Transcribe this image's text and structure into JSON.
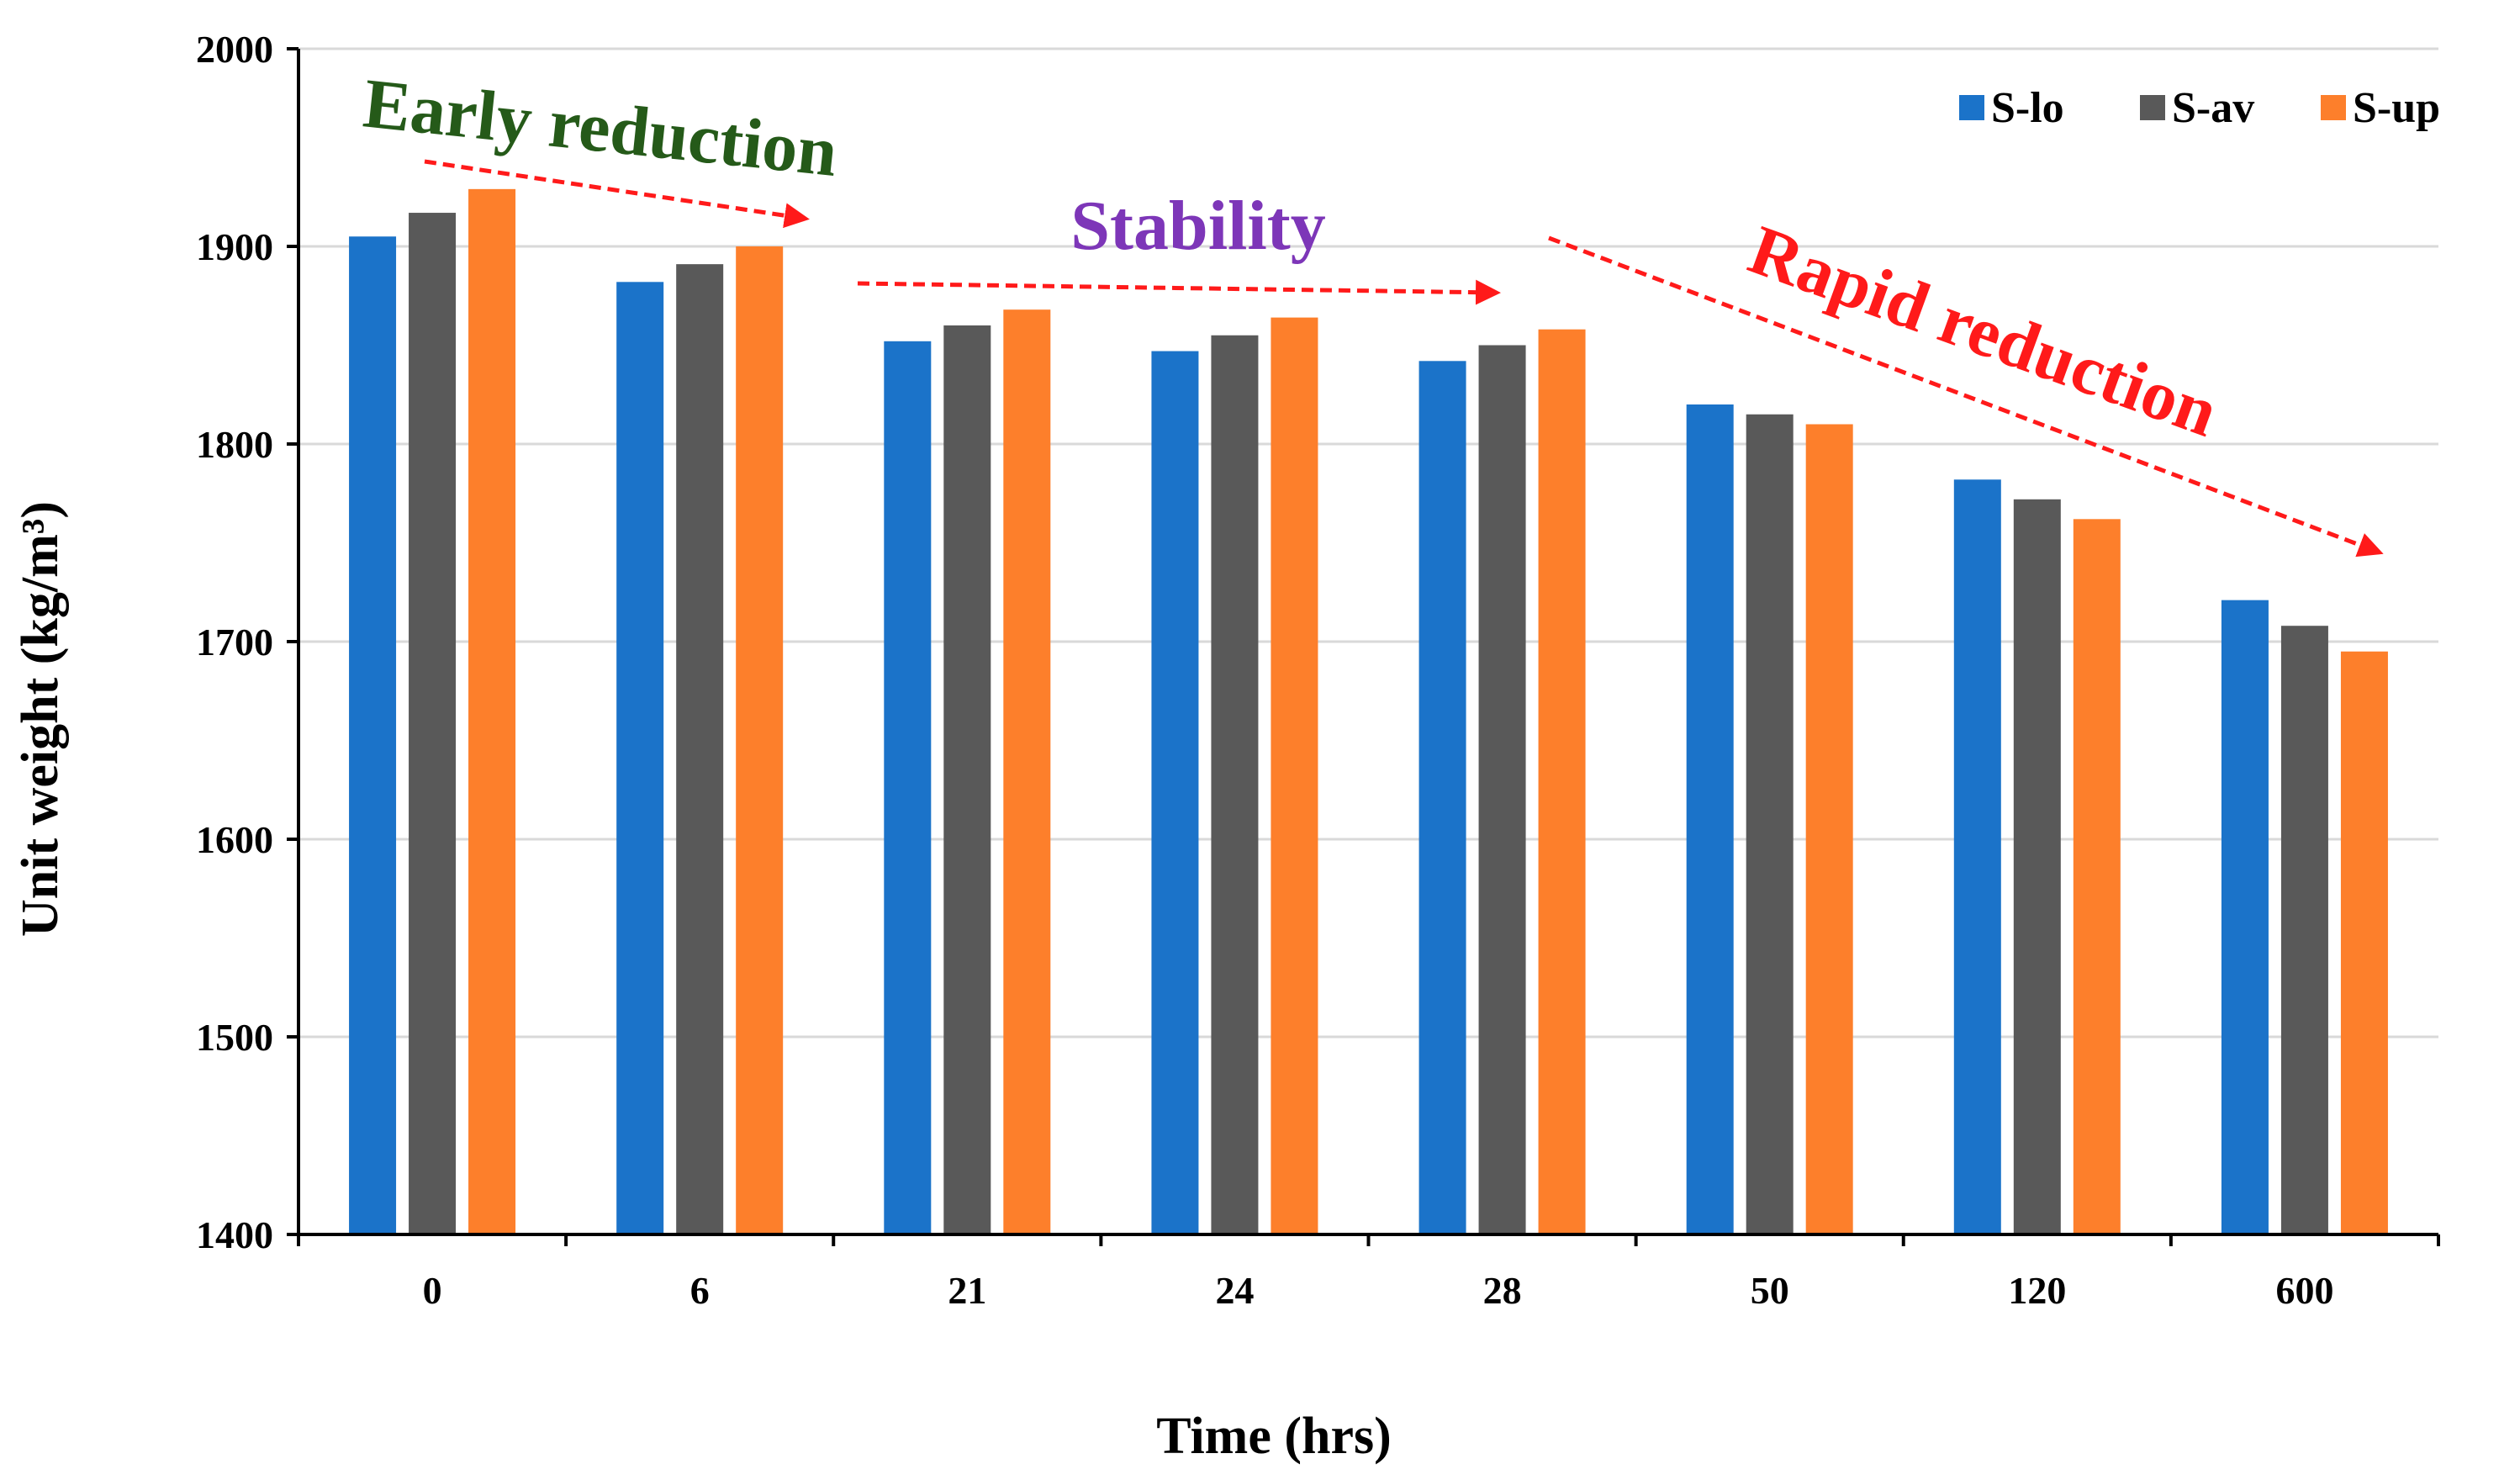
{
  "chart_data": {
    "type": "bar",
    "title": "",
    "xlabel": "Time (hrs)",
    "ylabel": "Unit weight (kg/m³)",
    "ylim": [
      1400,
      2000
    ],
    "yticks": [
      1400,
      1500,
      1600,
      1700,
      1800,
      1900,
      2000
    ],
    "grid": true,
    "legend_position": "top-right",
    "categories": [
      "0",
      "6",
      "21",
      "24",
      "28",
      "50",
      "120",
      "600"
    ],
    "series": [
      {
        "name": "S-lo",
        "color": "#1b73c9",
        "values": [
          1905,
          1882,
          1852,
          1847,
          1842,
          1820,
          1782,
          1721
        ]
      },
      {
        "name": "S-av",
        "color": "#595959",
        "values": [
          1917,
          1891,
          1860,
          1855,
          1850,
          1815,
          1772,
          1708
        ]
      },
      {
        "name": "S-up",
        "color": "#fd7f2b",
        "values": [
          1929,
          1900,
          1868,
          1864,
          1858,
          1810,
          1762,
          1695
        ]
      }
    ],
    "annotations": [
      {
        "text": "Early reduction",
        "color": "#255a19"
      },
      {
        "text": "Stability",
        "color": "#7d36b8"
      },
      {
        "text": "Rapid reduction",
        "color": "#ff1a1a"
      }
    ]
  }
}
